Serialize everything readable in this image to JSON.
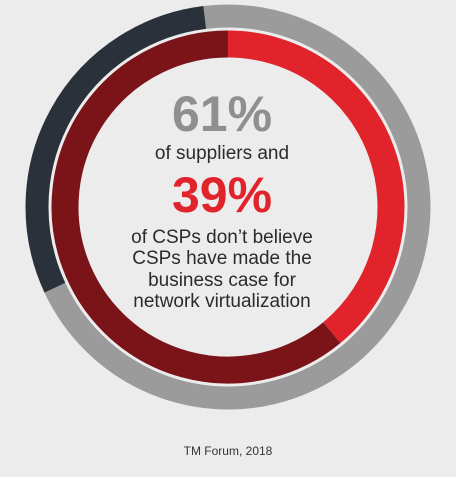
{
  "rings": {
    "outer": {
      "highlight": 30,
      "highlight_start": 245,
      "highlight_color": "#2a313b",
      "rest_color": "#9b9b9b"
    },
    "inner": {
      "highlight": 39,
      "highlight_start": 0,
      "highlight_color": "#e1232b",
      "rest_color": "#7b1418"
    }
  },
  "stat_1": {
    "value": "61%",
    "text": "of suppliers and",
    "color": "#8f8f8f"
  },
  "stat_2": {
    "value": "39%",
    "lines": [
      "of CSPs don’t believe",
      "CSPs have made the",
      "business case for",
      "network virtualization"
    ],
    "color": "#e1232b"
  },
  "source": "TM Forum, 2018"
}
